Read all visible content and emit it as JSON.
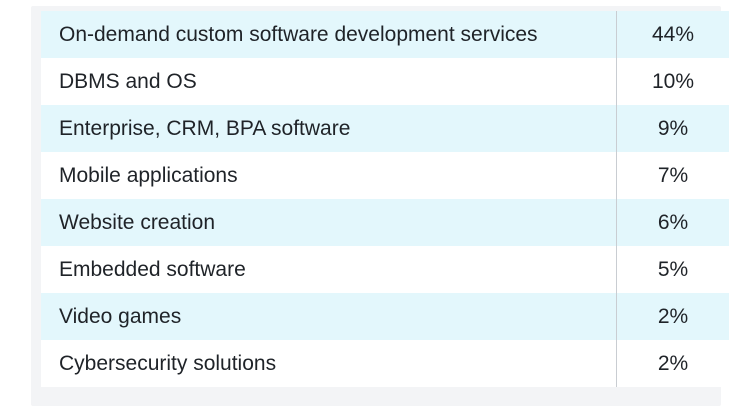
{
  "table": {
    "rows": [
      {
        "label": "On-demand custom software development services",
        "value": "44%"
      },
      {
        "label": "DBMS and OS",
        "value": "10%"
      },
      {
        "label": "Enterprise, CRM, BPA software",
        "value": "9%"
      },
      {
        "label": "Mobile applications",
        "value": "7%"
      },
      {
        "label": "Website creation",
        "value": "6%"
      },
      {
        "label": "Embedded software",
        "value": "5%"
      },
      {
        "label": "Video games",
        "value": "2%"
      },
      {
        "label": "Cybersecurity solutions",
        "value": "2%"
      }
    ]
  },
  "colors": {
    "stripe": "#e3f7fc",
    "row_alt": "#ffffff",
    "card_background": "#f3f4f6",
    "divider": "#c9cdd2",
    "text": "#1f2328"
  }
}
